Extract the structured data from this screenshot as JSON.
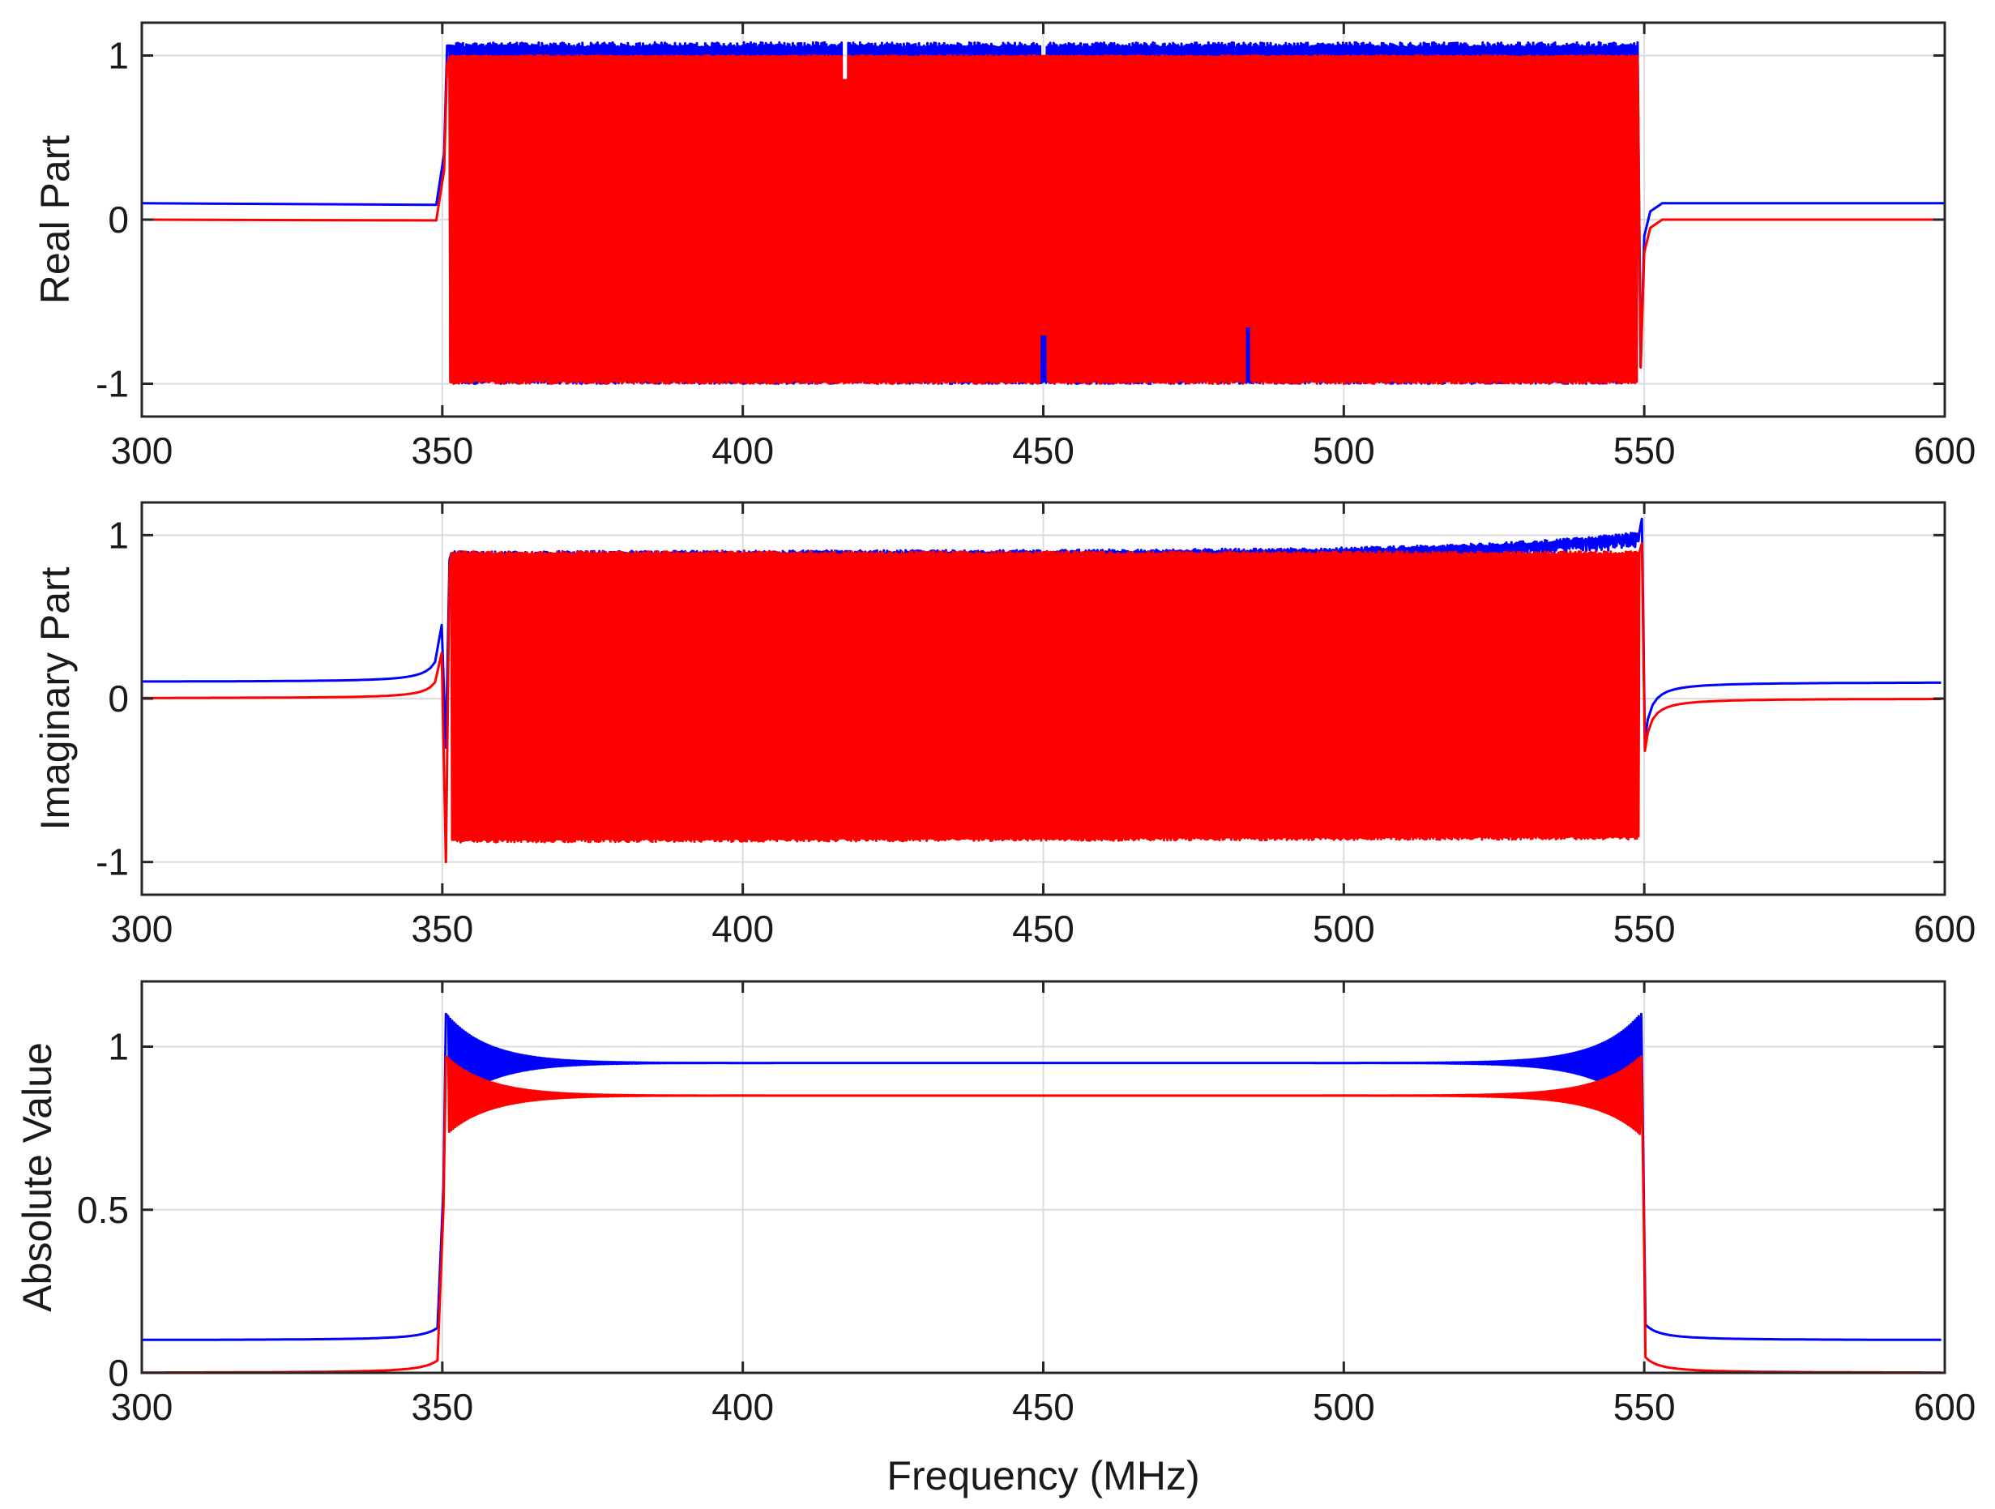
{
  "chart_data": [
    {
      "type": "line",
      "ylabel": "Real Part",
      "xlabel": "",
      "xlim": [
        300,
        600
      ],
      "ylim": [
        -1.2,
        1.2
      ],
      "xticks": [
        300,
        350,
        400,
        450,
        500,
        550,
        600
      ],
      "xtick_labels": [
        "300",
        "350",
        "400",
        "450",
        "500",
        "550",
        "600"
      ],
      "yticks": [
        -1,
        0,
        1
      ],
      "ytick_labels": [
        "-1",
        "0",
        "1"
      ],
      "grid": true,
      "series": [
        {
          "color": "#0000ff",
          "outside_band_level": 0.1,
          "band": [
            350,
            550
          ],
          "band_upper": 1.08,
          "band_lower": -1.0,
          "dips": [
            [
              417,
              0.85
            ],
            [
              450,
              0.8
            ]
          ]
        },
        {
          "color": "#ff0000",
          "outside_band_level": 0.0,
          "band": [
            350,
            550
          ],
          "band_upper": 1.0,
          "band_lower": -1.0,
          "notches": [
            [
              417,
              0.85
            ],
            [
              450,
              -0.7
            ],
            [
              484,
              -0.65
            ]
          ]
        }
      ]
    },
    {
      "type": "line",
      "ylabel": "Imaginary Part",
      "xlabel": "",
      "xlim": [
        300,
        600
      ],
      "ylim": [
        -1.2,
        1.2
      ],
      "xticks": [
        300,
        350,
        400,
        450,
        500,
        550,
        600
      ],
      "xtick_labels": [
        "300",
        "350",
        "400",
        "450",
        "500",
        "550",
        "600"
      ],
      "yticks": [
        -1,
        0,
        1
      ],
      "ytick_labels": [
        "-1",
        "0",
        "1"
      ],
      "grid": true,
      "series": [
        {
          "color": "#0000ff",
          "outside_band_level": 0.1,
          "band": [
            350,
            550
          ],
          "band_upper_start": 0.9,
          "band_upper_end": 1.05,
          "peak_before_band": 0.45,
          "dip_after_band": -0.25
        },
        {
          "color": "#ff0000",
          "outside_band_level": 0.0,
          "band": [
            350,
            550
          ],
          "band_upper": 0.9,
          "band_lower": -0.88,
          "peak_before_band": 0.28,
          "dip_after_band": -0.32
        }
      ]
    },
    {
      "type": "line",
      "ylabel": "Absolute Value",
      "xlabel": "Frequency (MHz)",
      "xlim": [
        300,
        600
      ],
      "ylim": [
        0,
        1.2
      ],
      "xticks": [
        300,
        350,
        400,
        450,
        500,
        550,
        600
      ],
      "xtick_labels": [
        "300",
        "350",
        "400",
        "450",
        "500",
        "550",
        "600"
      ],
      "yticks": [
        0,
        0.5,
        1
      ],
      "ytick_labels": [
        "0",
        "0.5",
        "1"
      ],
      "grid": true,
      "series": [
        {
          "color": "#0000ff",
          "outside_band_level": 0.1,
          "band": [
            350,
            550
          ],
          "passband_level": 0.95,
          "edge_peak": 1.1
        },
        {
          "color": "#ff0000",
          "outside_band_level": 0.0,
          "band": [
            350,
            550
          ],
          "passband_level": 0.85,
          "edge_peak": 0.97
        }
      ]
    }
  ]
}
